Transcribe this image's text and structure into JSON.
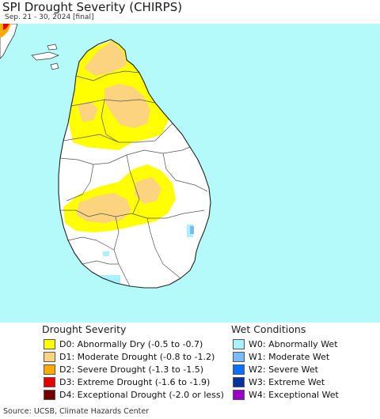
{
  "header": {
    "title": "SPI Drought Severity (CHIRPS)",
    "subtitle": "Sep. 21 - 30, 2024 [final]"
  },
  "map": {
    "region": "Sri Lanka",
    "ocean_color": "#b5fafa",
    "land_color": "#ffffff",
    "boundary_color": "#444444"
  },
  "legend": {
    "drought": {
      "heading": "Drought Severity",
      "items": [
        {
          "label": "D0: Abnormally Dry (-0.5 to -0.7)",
          "color": "#ffff00"
        },
        {
          "label": "D1: Moderate Drought (-0.8 to -1.2)",
          "color": "#fcd37f"
        },
        {
          "label": "D2: Severe Drought (-1.3 to -1.5)",
          "color": "#ffaa00"
        },
        {
          "label": "D3: Extreme Drought (-1.6 to -1.9)",
          "color": "#e60000"
        },
        {
          "label": "D4: Exceptional Drought (-2.0 or less)",
          "color": "#730000"
        }
      ]
    },
    "wet": {
      "heading": "Wet Conditions",
      "items": [
        {
          "label": "W0: Abnormally Wet",
          "color": "#aaf0ff"
        },
        {
          "label": "W1: Moderate Wet",
          "color": "#7ab8ff"
        },
        {
          "label": "W2: Severe Wet",
          "color": "#0a6eff"
        },
        {
          "label": "W3: Extreme Wet",
          "color": "#0033a0"
        },
        {
          "label": "W4: Exceptional Wet",
          "color": "#9900cc"
        }
      ]
    }
  },
  "footer": {
    "source": "Source: UCSB, Climate Hazards Center"
  }
}
